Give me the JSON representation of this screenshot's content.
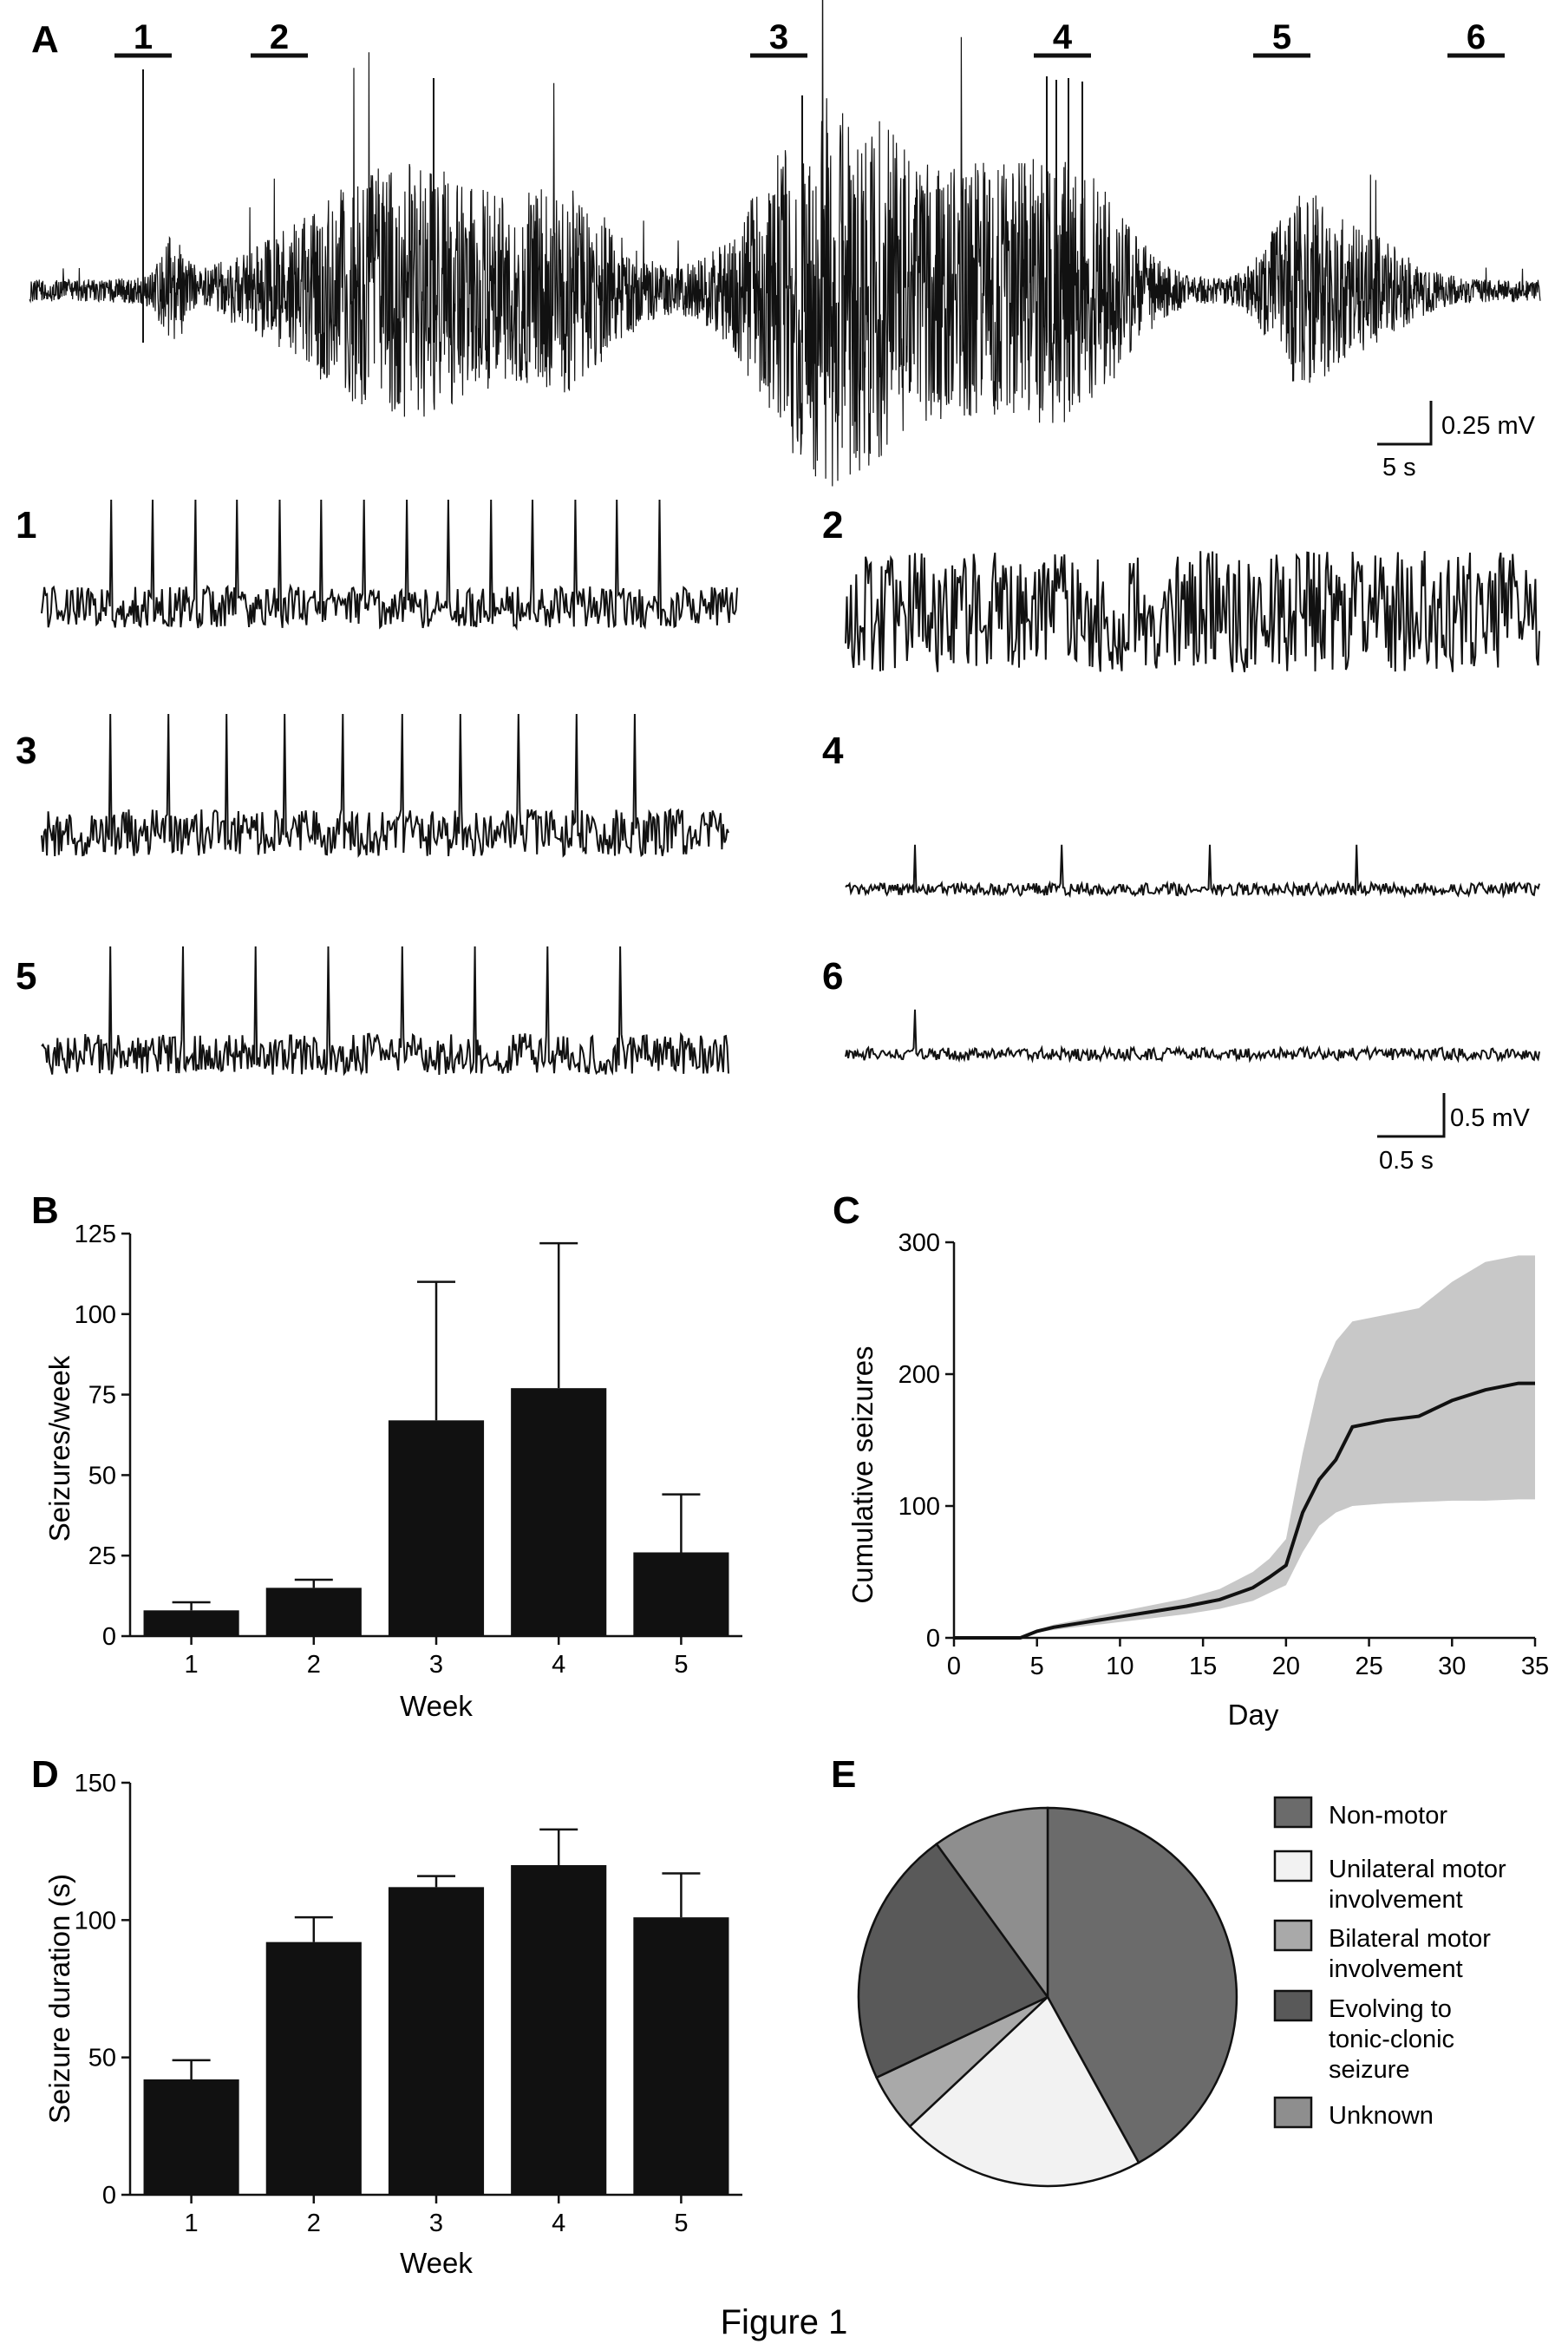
{
  "figure": {
    "caption": "Figure 1",
    "panel_A": {
      "letter": "A",
      "segments": [
        "1",
        "2",
        "3",
        "4",
        "5",
        "6"
      ],
      "scale_amplitude": "0.25 mV",
      "scale_time": "5 s",
      "zoom_scale_amplitude": "0.5 mV",
      "zoom_scale_time": "0.5 s"
    },
    "colors": {
      "bars": "#111111",
      "line": "#111111",
      "band": "#c8c8c8",
      "pie_non_motor": "#6b6b6b",
      "pie_unilateral": "#f2f2f2",
      "pie_bilateral": "#a9a9a9",
      "pie_evolving": "#595959",
      "pie_unknown": "#8e8e8e"
    }
  },
  "chart_data": [
    {
      "id": "B",
      "panel_letter": "B",
      "type": "bar",
      "categories": [
        "1",
        "2",
        "3",
        "4",
        "5"
      ],
      "values": [
        8,
        15,
        67,
        77,
        26
      ],
      "errors": [
        2.5,
        2.5,
        43,
        45,
        18
      ],
      "xlabel": "Week",
      "ylabel": "Seizures/week",
      "ylim": [
        0,
        125
      ],
      "yticks": [
        "0",
        "25",
        "50",
        "75",
        "100",
        "125"
      ],
      "grid": false
    },
    {
      "id": "C",
      "panel_letter": "C",
      "type": "area",
      "x": [
        0,
        1,
        2,
        3,
        4,
        5,
        6,
        8,
        10,
        12,
        14,
        16,
        18,
        19,
        20,
        21,
        22,
        23,
        24,
        26,
        28,
        30,
        32,
        34,
        35
      ],
      "y": [
        0,
        0,
        0,
        0,
        0,
        5,
        8,
        12,
        16,
        20,
        24,
        29,
        38,
        46,
        55,
        95,
        120,
        135,
        160,
        165,
        168,
        180,
        188,
        193,
        193
      ],
      "y_upper": [
        0,
        0,
        0,
        0,
        0,
        6,
        10,
        15,
        20,
        25,
        30,
        37,
        50,
        60,
        75,
        140,
        195,
        225,
        240,
        245,
        250,
        270,
        285,
        290,
        290
      ],
      "y_lower": [
        0,
        0,
        0,
        0,
        0,
        4,
        6,
        9,
        12,
        15,
        18,
        22,
        28,
        34,
        40,
        65,
        85,
        95,
        100,
        102,
        103,
        104,
        104,
        105,
        105
      ],
      "xlabel": "Day",
      "ylabel": "Cumulative seizures",
      "xlim": [
        0,
        35
      ],
      "ylim": [
        0,
        300
      ],
      "xticks": [
        "0",
        "5",
        "10",
        "15",
        "20",
        "25",
        "30",
        "35"
      ],
      "yticks": [
        "0",
        "100",
        "200",
        "300"
      ],
      "grid": false
    },
    {
      "id": "D",
      "panel_letter": "D",
      "type": "bar",
      "categories": [
        "1",
        "2",
        "3",
        "4",
        "5"
      ],
      "values": [
        42,
        92,
        112,
        120,
        101
      ],
      "errors": [
        7,
        9,
        4,
        13,
        16
      ],
      "xlabel": "Week",
      "ylabel": "Seizure duration (s)",
      "ylim": [
        0,
        150
      ],
      "yticks": [
        "0",
        "50",
        "100",
        "150"
      ],
      "grid": false
    },
    {
      "id": "E",
      "panel_letter": "E",
      "type": "pie",
      "labels": [
        "Non-motor",
        "Unilateral motor involvement",
        "Bilateral motor involvement",
        "Evolving to tonic-clonic seizure",
        "Unknown"
      ],
      "legend_lines": [
        [
          "Non-motor"
        ],
        [
          "Unilateral motor",
          "involvement"
        ],
        [
          "Bilateral motor",
          "involvement"
        ],
        [
          "Evolving to",
          "tonic-clonic",
          "seizure"
        ],
        [
          "Unknown"
        ]
      ],
      "values": [
        42,
        21,
        5,
        22,
        10
      ],
      "legend": "right"
    }
  ]
}
